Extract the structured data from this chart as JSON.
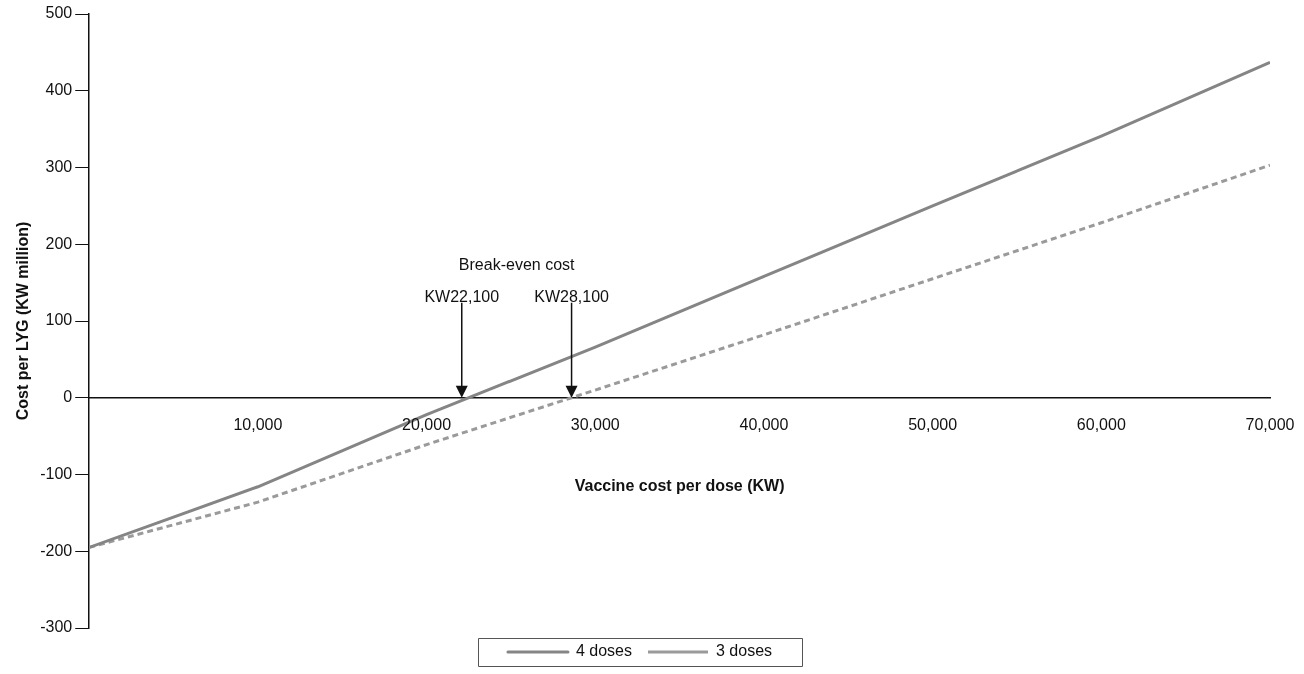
{
  "chart_data": {
    "type": "line",
    "xlabel": "Vaccine cost per dose (KW)",
    "ylabel": "Cost per LYG (KW million)",
    "annotations": [
      "Break-even cost",
      "KW22,100",
      "KW28,100"
    ],
    "xlim": [
      0,
      70000
    ],
    "ylim": [
      -300,
      500
    ],
    "xticks": [
      {
        "value": 10000,
        "label": "10,000"
      },
      {
        "value": 20000,
        "label": "20,000"
      },
      {
        "value": 30000,
        "label": "30,000"
      },
      {
        "value": 40000,
        "label": "40,000"
      },
      {
        "value": 50000,
        "label": "50,000"
      },
      {
        "value": 60000,
        "label": "60,000"
      },
      {
        "value": 70000,
        "label": "70,000"
      }
    ],
    "yticks": [
      -300,
      -200,
      -100,
      0,
      100,
      200,
      300,
      400,
      500
    ],
    "grid": false,
    "legend": "bottom",
    "marker": "none",
    "series": [
      {
        "name": "4 doses",
        "color": "#858585",
        "line_style": "solid",
        "x": [
          0,
          10000,
          20000,
          30000,
          40000,
          50000,
          60000,
          70000
        ],
        "values": [
          -195,
          -116,
          -22,
          66,
          158,
          250,
          341,
          437
        ]
      },
      {
        "name": "3 doses",
        "color": "#9a9a9a",
        "line_style": "dashed",
        "x": [
          0,
          10000,
          20000,
          30000,
          40000,
          50000,
          60000,
          70000
        ],
        "values": [
          -195,
          -136,
          -61,
          10,
          82,
          155,
          228,
          303
        ]
      }
    ]
  }
}
